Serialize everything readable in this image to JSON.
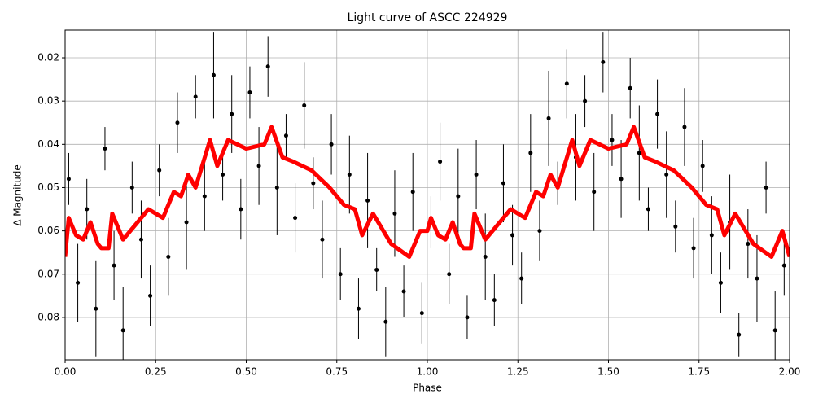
{
  "chart_data": {
    "type": "scatter",
    "title": "Light curve of ASCC 224929",
    "x_label": "Phase",
    "y_label": "Δ Magnitude",
    "xlim": [
      0,
      2
    ],
    "ylim": [
      0.0898,
      0.0136
    ],
    "y_inverted": true,
    "grid": true,
    "xticks": [
      {
        "value": 0,
        "label": "0.00"
      },
      {
        "value": 0.25,
        "label": "0.25"
      },
      {
        "value": 0.5,
        "label": "0.50"
      },
      {
        "value": 0.75,
        "label": "0.75"
      },
      {
        "value": 1,
        "label": "1.00"
      },
      {
        "value": 1.25,
        "label": "1.25"
      },
      {
        "value": 1.5,
        "label": "1.50"
      },
      {
        "value": 1.75,
        "label": "1.75"
      },
      {
        "value": 2,
        "label": "2.00"
      }
    ],
    "yticks": [
      0.02,
      0.03,
      0.04,
      0.05,
      0.06,
      0.07,
      0.08
    ],
    "series": [
      {
        "style": "points",
        "color": "#000000",
        "x": [
          0.01,
          0.035,
          0.06,
          0.085,
          0.11,
          0.135,
          0.16,
          0.185,
          0.21,
          0.235,
          0.26,
          0.285,
          0.31,
          0.335,
          0.36,
          0.385,
          0.41,
          0.435,
          0.46,
          0.485,
          0.51,
          0.535,
          0.56,
          0.585,
          0.61,
          0.635,
          0.66,
          0.685,
          0.71,
          0.735,
          0.76,
          0.785,
          0.81,
          0.835,
          0.86,
          0.885,
          0.91,
          0.935,
          0.96,
          0.985,
          1.01,
          1.035,
          1.06,
          1.085,
          1.11,
          1.135,
          1.16,
          1.185,
          1.21,
          1.235,
          1.26,
          1.285,
          1.31,
          1.335,
          1.36,
          1.385,
          1.41,
          1.435,
          1.46,
          1.485,
          1.51,
          1.535,
          1.56,
          1.585,
          1.61,
          1.635,
          1.66,
          1.685,
          1.71,
          1.735,
          1.76,
          1.785,
          1.81,
          1.835,
          1.86,
          1.885,
          1.91,
          1.935,
          1.96,
          1.985
        ],
        "values": [
          0.048,
          0.072,
          0.055,
          0.078,
          0.041,
          0.068,
          0.083,
          0.05,
          0.062,
          0.075,
          0.046,
          0.066,
          0.035,
          0.058,
          0.029,
          0.052,
          0.024,
          0.047,
          0.033,
          0.055,
          0.028,
          0.045,
          0.022,
          0.05,
          0.038,
          0.057,
          0.031,
          0.049,
          0.062,
          0.04,
          0.07,
          0.047,
          0.078,
          0.053,
          0.069,
          0.081,
          0.056,
          0.074,
          0.051,
          0.079,
          0.058,
          0.044,
          0.07,
          0.052,
          0.08,
          0.047,
          0.066,
          0.076,
          0.049,
          0.061,
          0.071,
          0.042,
          0.06,
          0.034,
          0.049,
          0.026,
          0.043,
          0.03,
          0.051,
          0.021,
          0.039,
          0.048,
          0.027,
          0.042,
          0.055,
          0.033,
          0.047,
          0.059,
          0.036,
          0.064,
          0.045,
          0.061,
          0.072,
          0.058,
          0.084,
          0.063,
          0.071,
          0.05,
          0.083,
          0.068
        ],
        "errors": [
          0.006,
          0.009,
          0.007,
          0.011,
          0.005,
          0.008,
          0.01,
          0.006,
          0.009,
          0.007,
          0.006,
          0.009,
          0.007,
          0.011,
          0.005,
          0.008,
          0.01,
          0.006,
          0.009,
          0.007,
          0.006,
          0.009,
          0.007,
          0.011,
          0.005,
          0.008,
          0.01,
          0.006,
          0.009,
          0.007,
          0.006,
          0.009,
          0.007,
          0.011,
          0.005,
          0.008,
          0.01,
          0.006,
          0.009,
          0.007,
          0.006,
          0.009,
          0.007,
          0.011,
          0.005,
          0.008,
          0.01,
          0.006,
          0.009,
          0.007,
          0.006,
          0.009,
          0.007,
          0.011,
          0.005,
          0.008,
          0.01,
          0.006,
          0.009,
          0.007,
          0.006,
          0.009,
          0.007,
          0.011,
          0.005,
          0.008,
          0.01,
          0.006,
          0.009,
          0.007,
          0.006,
          0.009,
          0.007,
          0.011,
          0.005,
          0.008,
          0.01,
          0.006,
          0.009,
          0.007
        ]
      },
      {
        "style": "line",
        "color": "#ff0000",
        "x": [
          0,
          0.01,
          0.03,
          0.05,
          0.07,
          0.09,
          0.1,
          0.12,
          0.13,
          0.16,
          0.2,
          0.23,
          0.27,
          0.3,
          0.32,
          0.34,
          0.36,
          0.4,
          0.42,
          0.45,
          0.5,
          0.55,
          0.57,
          0.6,
          0.63,
          0.68,
          0.73,
          0.77,
          0.8,
          0.82,
          0.85,
          0.9,
          0.95,
          0.98,
          1.0,
          1.01,
          1.03,
          1.05,
          1.07,
          1.09,
          1.1,
          1.12,
          1.13,
          1.16,
          1.2,
          1.23,
          1.27,
          1.3,
          1.32,
          1.34,
          1.36,
          1.4,
          1.42,
          1.45,
          1.5,
          1.55,
          1.57,
          1.6,
          1.63,
          1.68,
          1.73,
          1.77,
          1.8,
          1.82,
          1.85,
          1.9,
          1.95,
          1.98,
          2.0
        ],
        "values": [
          0.066,
          0.057,
          0.061,
          0.062,
          0.058,
          0.063,
          0.064,
          0.064,
          0.056,
          0.062,
          0.058,
          0.055,
          0.057,
          0.051,
          0.052,
          0.047,
          0.05,
          0.039,
          0.045,
          0.039,
          0.041,
          0.04,
          0.036,
          0.043,
          0.044,
          0.046,
          0.05,
          0.054,
          0.055,
          0.061,
          0.056,
          0.063,
          0.066,
          0.06,
          0.06,
          0.057,
          0.061,
          0.062,
          0.058,
          0.063,
          0.064,
          0.064,
          0.056,
          0.062,
          0.058,
          0.055,
          0.057,
          0.051,
          0.052,
          0.047,
          0.05,
          0.039,
          0.045,
          0.039,
          0.041,
          0.04,
          0.036,
          0.043,
          0.044,
          0.046,
          0.05,
          0.054,
          0.055,
          0.061,
          0.056,
          0.063,
          0.066,
          0.06,
          0.066
        ]
      }
    ]
  }
}
